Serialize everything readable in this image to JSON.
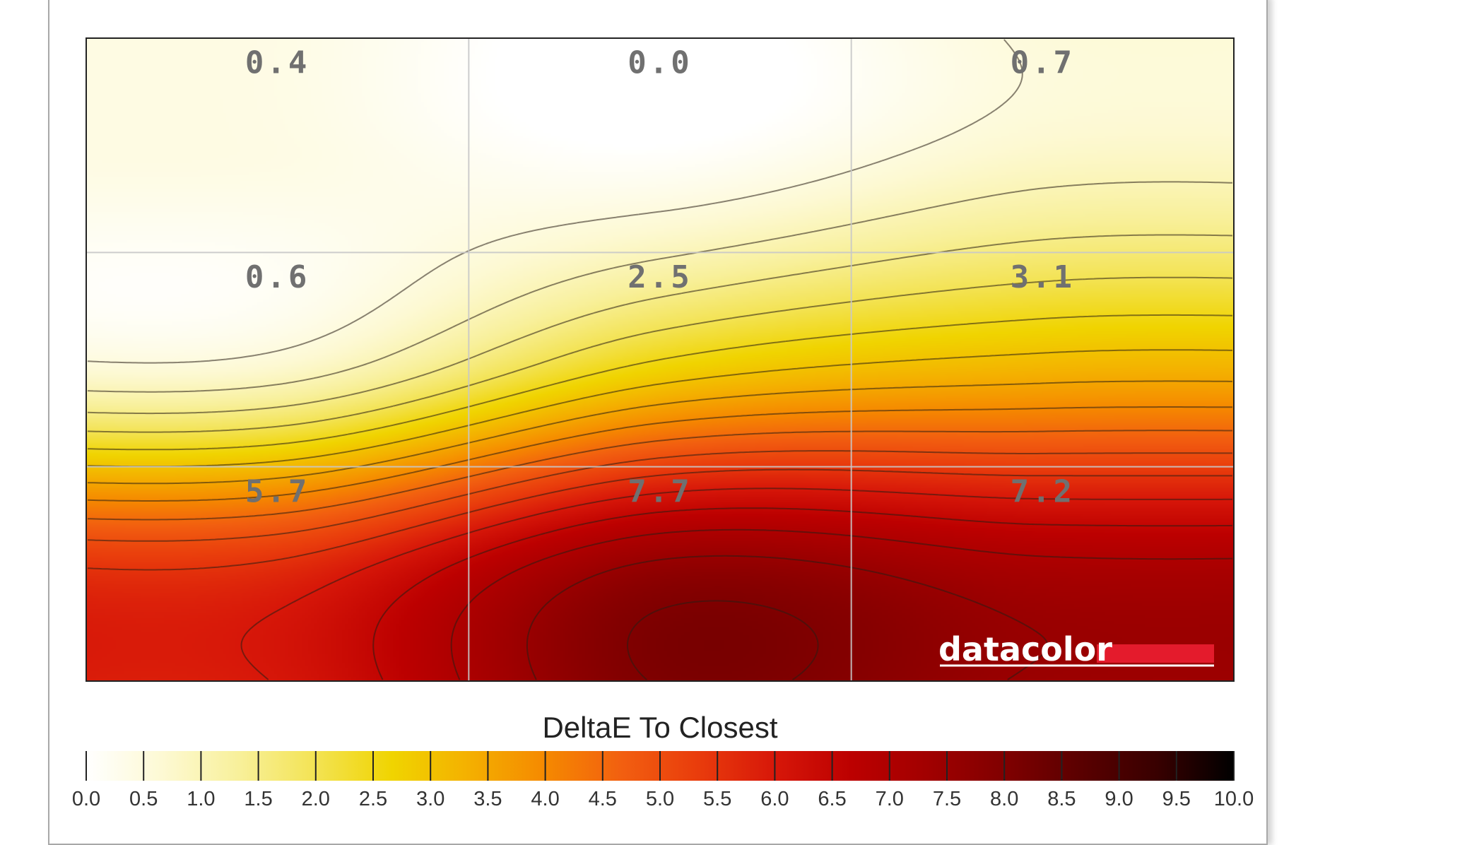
{
  "chart_data": {
    "type": "heatmap",
    "title": "",
    "rows": 3,
    "cols": 3,
    "cells": [
      [
        0.4,
        0.0,
        0.7
      ],
      [
        0.6,
        2.5,
        3.1
      ],
      [
        5.7,
        7.7,
        7.2
      ]
    ],
    "cell_labels": [
      [
        "0.4",
        "0.0",
        "0.7"
      ],
      [
        "0.6",
        "2.5",
        "3.1"
      ],
      [
        "5.7",
        "7.7",
        "7.2"
      ]
    ],
    "colorbar": {
      "title": "DeltaE To Closest",
      "min": 0.0,
      "max": 10.0,
      "ticks": [
        "0.0",
        "0.5",
        "1.0",
        "1.5",
        "2.0",
        "2.5",
        "3.0",
        "3.5",
        "4.0",
        "4.5",
        "5.0",
        "5.5",
        "6.0",
        "6.5",
        "7.0",
        "7.5",
        "8.0",
        "8.5",
        "9.0",
        "9.5",
        "10.0"
      ],
      "colors": [
        "#ffffff",
        "#fdf9d3",
        "#f8f09a",
        "#f3e353",
        "#f0d400",
        "#f4b000",
        "#f58900",
        "#f25f10",
        "#e93c0c",
        "#d71709",
        "#bc0000",
        "#a10000",
        "#800000",
        "#5a0000",
        "#380000",
        "#000000"
      ]
    },
    "contours": "on",
    "grid": "on",
    "legend_position": "bottom"
  },
  "brand": {
    "name": "datacolor",
    "color": "#e41b2c"
  }
}
